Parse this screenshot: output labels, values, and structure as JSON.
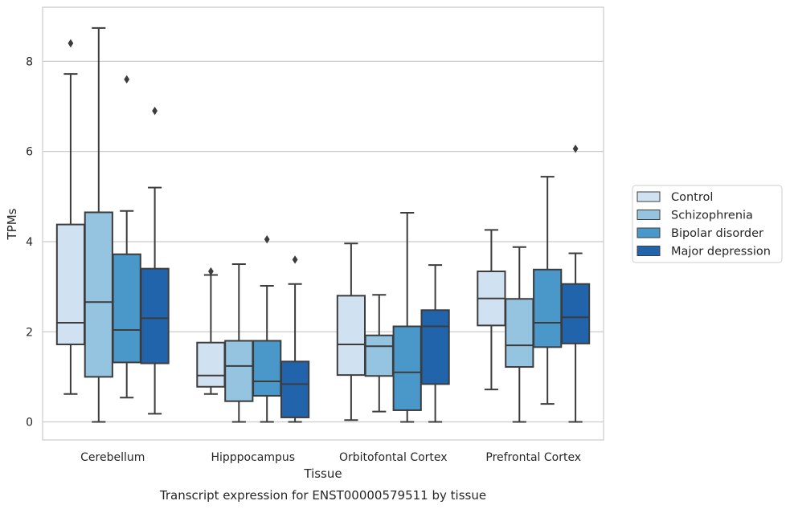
{
  "caption": "Transcript expression for ENST00000579511 by tissue",
  "chart_data": {
    "type": "box",
    "xlabel": "Tissue",
    "ylabel": "TPMs",
    "ylim": [
      -0.4,
      9.2
    ],
    "yticks": [
      0,
      2,
      4,
      6,
      8
    ],
    "grid": "horizontal",
    "legend_position": "outside right",
    "categories": [
      "Cerebellum",
      "Hipppocampus",
      "Orbitofontal Cortex",
      "Prefrontal Cortex"
    ],
    "series": [
      {
        "name": "Control",
        "color": "#d0e1f2",
        "boxes": [
          {
            "whisker_low": 0.62,
            "q1": 1.72,
            "median": 2.2,
            "q3": 4.38,
            "whisker_high": 7.72,
            "outliers": [
              8.4
            ]
          },
          {
            "whisker_low": 0.62,
            "q1": 0.78,
            "median": 1.03,
            "q3": 1.76,
            "whisker_high": 3.26,
            "outliers": [
              3.34
            ]
          },
          {
            "whisker_low": 0.04,
            "q1": 1.04,
            "median": 1.72,
            "q3": 2.8,
            "whisker_high": 3.96,
            "outliers": []
          },
          {
            "whisker_low": 0.72,
            "q1": 2.14,
            "median": 2.74,
            "q3": 3.34,
            "whisker_high": 4.26,
            "outliers": []
          }
        ]
      },
      {
        "name": "Schizophrenia",
        "color": "#94c4df",
        "boxes": [
          {
            "whisker_low": 0.0,
            "q1": 1.0,
            "median": 2.66,
            "q3": 4.65,
            "whisker_high": 8.74,
            "outliers": []
          },
          {
            "whisker_low": 0.0,
            "q1": 0.46,
            "median": 1.24,
            "q3": 1.8,
            "whisker_high": 3.5,
            "outliers": []
          },
          {
            "whisker_low": 0.23,
            "q1": 1.02,
            "median": 1.68,
            "q3": 1.92,
            "whisker_high": 2.82,
            "outliers": []
          },
          {
            "whisker_low": 0.0,
            "q1": 1.22,
            "median": 1.7,
            "q3": 2.73,
            "whisker_high": 3.88,
            "outliers": []
          }
        ]
      },
      {
        "name": "Bipolar disorder",
        "color": "#4a98c9",
        "boxes": [
          {
            "whisker_low": 0.54,
            "q1": 1.32,
            "median": 2.04,
            "q3": 3.72,
            "whisker_high": 4.68,
            "outliers": [
              7.6
            ]
          },
          {
            "whisker_low": 0.0,
            "q1": 0.58,
            "median": 0.9,
            "q3": 1.8,
            "whisker_high": 3.02,
            "outliers": [
              4.05
            ]
          },
          {
            "whisker_low": 0.0,
            "q1": 0.26,
            "median": 1.1,
            "q3": 2.12,
            "whisker_high": 4.64,
            "outliers": []
          },
          {
            "whisker_low": 0.4,
            "q1": 1.66,
            "median": 2.2,
            "q3": 3.38,
            "whisker_high": 5.44,
            "outliers": []
          }
        ]
      },
      {
        "name": "Major depression",
        "color": "#2164ab",
        "boxes": [
          {
            "whisker_low": 0.18,
            "q1": 1.3,
            "median": 2.3,
            "q3": 3.4,
            "whisker_high": 5.2,
            "outliers": [
              6.9
            ]
          },
          {
            "whisker_low": 0.0,
            "q1": 0.1,
            "median": 0.84,
            "q3": 1.34,
            "whisker_high": 3.06,
            "outliers": [
              3.6
            ]
          },
          {
            "whisker_low": 0.0,
            "q1": 0.84,
            "median": 2.12,
            "q3": 2.48,
            "whisker_high": 3.48,
            "outliers": []
          },
          {
            "whisker_low": 0.0,
            "q1": 1.74,
            "median": 2.32,
            "q3": 3.06,
            "whisker_high": 3.74,
            "outliers": [
              6.06
            ]
          }
        ]
      }
    ]
  }
}
